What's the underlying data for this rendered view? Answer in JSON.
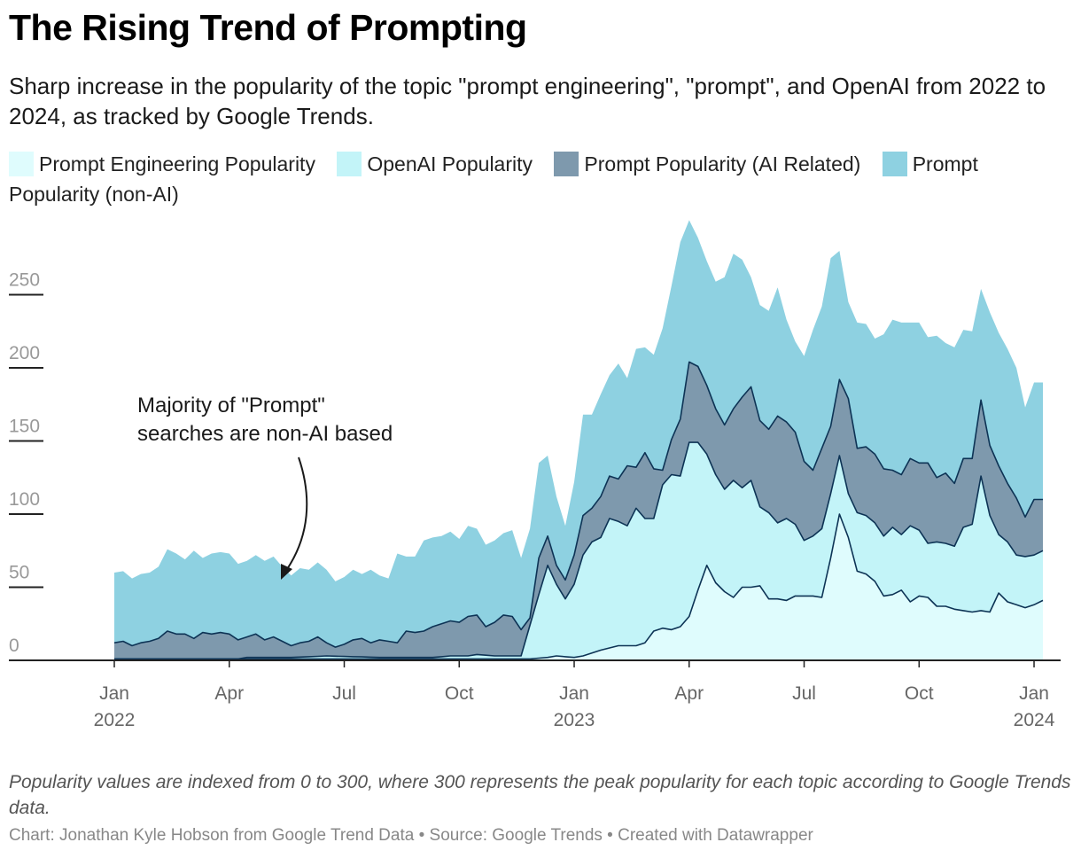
{
  "title": "The Rising Trend of Prompting",
  "subtitle": "Sharp increase in the popularity of the topic \"prompt engineering\", \"prompt\", and OpenAI from 2022 to 2024, as tracked by Google Trends.",
  "legend": [
    {
      "label": "Prompt Engineering Popularity",
      "color": "#dffcfd"
    },
    {
      "label": "OpenAI Popularity",
      "color": "#c3f4f8"
    },
    {
      "label": "Prompt Popularity (AI Related)",
      "color": "#7e99ad"
    },
    {
      "label": "Prompt Popularity (non-AI)",
      "color": "#8ed1e1"
    }
  ],
  "annotation": {
    "line1": "Majority of \"Prompt\"",
    "line2": "searches are non-AI based"
  },
  "footnote": "Popularity values are indexed from 0 to 300, where 300 represents the peak popularity for each topic according to Google Trends data.",
  "credit": "Chart: Jonathan Kyle Hobson from Google Trend Data • Source: Google Trends • Created with Datawrapper",
  "chart_data": {
    "type": "area",
    "stacked": true,
    "x_unit": "week",
    "x_start": "2022-01-02",
    "x_count": 106,
    "ylim": [
      0,
      250
    ],
    "y_ticks": [
      0,
      50,
      100,
      150,
      200,
      250
    ],
    "x_ticks": [
      {
        "index": 0,
        "month": "Jan",
        "year": "2022"
      },
      {
        "index": 13,
        "month": "Apr",
        "year": ""
      },
      {
        "index": 26,
        "month": "Jul",
        "year": ""
      },
      {
        "index": 39,
        "month": "Oct",
        "year": ""
      },
      {
        "index": 52,
        "month": "Jan",
        "year": "2023"
      },
      {
        "index": 65,
        "month": "Apr",
        "year": ""
      },
      {
        "index": 78,
        "month": "Jul",
        "year": ""
      },
      {
        "index": 91,
        "month": "Oct",
        "year": ""
      },
      {
        "index": 104,
        "month": "Jan",
        "year": "2024"
      }
    ],
    "cumulative_anchors": {
      "prompt_engineering": [
        [
          0,
          1
        ],
        [
          47,
          1
        ],
        [
          49,
          2
        ],
        [
          50,
          3
        ],
        [
          52,
          2
        ],
        [
          53,
          3
        ],
        [
          54,
          5
        ],
        [
          55,
          7
        ],
        [
          57,
          10
        ],
        [
          59,
          10
        ],
        [
          60,
          12
        ],
        [
          61,
          20
        ],
        [
          62,
          22
        ],
        [
          63,
          21
        ],
        [
          64,
          23
        ],
        [
          65,
          30
        ],
        [
          66,
          48
        ],
        [
          67,
          65
        ],
        [
          68,
          53
        ],
        [
          69,
          47
        ],
        [
          70,
          43
        ],
        [
          71,
          50
        ],
        [
          72,
          50
        ],
        [
          73,
          51
        ],
        [
          74,
          42
        ],
        [
          75,
          42
        ],
        [
          76,
          41
        ],
        [
          77,
          44
        ],
        [
          78,
          44
        ],
        [
          79,
          44
        ],
        [
          80,
          43
        ],
        [
          81,
          70
        ],
        [
          82,
          100
        ],
        [
          83,
          84
        ],
        [
          84,
          61
        ],
        [
          85,
          59
        ],
        [
          86,
          54
        ],
        [
          87,
          44
        ],
        [
          88,
          45
        ],
        [
          89,
          48
        ],
        [
          90,
          40
        ],
        [
          91,
          44
        ],
        [
          92,
          43
        ],
        [
          93,
          37
        ],
        [
          94,
          37
        ],
        [
          95,
          35
        ],
        [
          96,
          34
        ],
        [
          97,
          33
        ],
        [
          98,
          34
        ],
        [
          99,
          33
        ],
        [
          100,
          46
        ],
        [
          101,
          40
        ],
        [
          102,
          38
        ],
        [
          103,
          36
        ],
        [
          104,
          38
        ],
        [
          105,
          41
        ]
      ],
      "openai": [
        [
          0,
          1
        ],
        [
          14,
          1
        ],
        [
          15,
          2
        ],
        [
          20,
          2
        ],
        [
          24,
          3
        ],
        [
          30,
          2
        ],
        [
          36,
          2
        ],
        [
          38,
          3
        ],
        [
          40,
          3
        ],
        [
          41,
          4
        ],
        [
          43,
          3
        ],
        [
          46,
          3
        ],
        [
          48,
          45
        ],
        [
          49,
          65
        ],
        [
          50,
          52
        ],
        [
          51,
          42
        ],
        [
          52,
          52
        ],
        [
          53,
          72
        ],
        [
          54,
          81
        ],
        [
          55,
          84
        ],
        [
          56,
          97
        ],
        [
          57,
          95
        ],
        [
          58,
          92
        ],
        [
          59,
          104
        ],
        [
          60,
          97
        ],
        [
          61,
          97
        ],
        [
          62,
          120
        ],
        [
          63,
          127
        ],
        [
          64,
          126
        ],
        [
          65,
          149
        ],
        [
          66,
          149
        ],
        [
          67,
          141
        ],
        [
          68,
          127
        ],
        [
          69,
          117
        ],
        [
          70,
          123
        ],
        [
          71,
          118
        ],
        [
          72,
          123
        ],
        [
          73,
          105
        ],
        [
          74,
          101
        ],
        [
          75,
          94
        ],
        [
          76,
          97
        ],
        [
          77,
          93
        ],
        [
          78,
          82
        ],
        [
          79,
          85
        ],
        [
          80,
          90
        ],
        [
          81,
          114
        ],
        [
          82,
          140
        ],
        [
          83,
          114
        ],
        [
          84,
          101
        ],
        [
          85,
          99
        ],
        [
          86,
          94
        ],
        [
          87,
          85
        ],
        [
          88,
          91
        ],
        [
          89,
          86
        ],
        [
          90,
          92
        ],
        [
          91,
          89
        ],
        [
          92,
          80
        ],
        [
          93,
          81
        ],
        [
          94,
          80
        ],
        [
          95,
          78
        ],
        [
          96,
          91
        ],
        [
          97,
          93
        ],
        [
          98,
          126
        ],
        [
          99,
          99
        ],
        [
          100,
          86
        ],
        [
          101,
          81
        ],
        [
          102,
          72
        ],
        [
          103,
          71
        ],
        [
          104,
          72
        ],
        [
          105,
          75
        ]
      ],
      "prompt_ai": [
        [
          0,
          12
        ],
        [
          1,
          13
        ],
        [
          2,
          10
        ],
        [
          3,
          12
        ],
        [
          4,
          13
        ],
        [
          5,
          15
        ],
        [
          6,
          20
        ],
        [
          7,
          18
        ],
        [
          8,
          18
        ],
        [
          9,
          15
        ],
        [
          10,
          19
        ],
        [
          11,
          18
        ],
        [
          12,
          19
        ],
        [
          13,
          18
        ],
        [
          14,
          14
        ],
        [
          15,
          16
        ],
        [
          16,
          18
        ],
        [
          17,
          14
        ],
        [
          18,
          16
        ],
        [
          19,
          13
        ],
        [
          20,
          10
        ],
        [
          21,
          12
        ],
        [
          22,
          13
        ],
        [
          23,
          16
        ],
        [
          24,
          12
        ],
        [
          25,
          9
        ],
        [
          26,
          11
        ],
        [
          27,
          14
        ],
        [
          28,
          15
        ],
        [
          29,
          12
        ],
        [
          30,
          14
        ],
        [
          31,
          13
        ],
        [
          32,
          12
        ],
        [
          33,
          20
        ],
        [
          34,
          19
        ],
        [
          35,
          20
        ],
        [
          36,
          23
        ],
        [
          37,
          25
        ],
        [
          38,
          27
        ],
        [
          39,
          26
        ],
        [
          40,
          30
        ],
        [
          41,
          31
        ],
        [
          42,
          23
        ],
        [
          43,
          26
        ],
        [
          44,
          31
        ],
        [
          45,
          30
        ],
        [
          46,
          21
        ],
        [
          47,
          29
        ],
        [
          48,
          70
        ],
        [
          49,
          85
        ],
        [
          50,
          65
        ],
        [
          51,
          55
        ],
        [
          52,
          72
        ],
        [
          53,
          99
        ],
        [
          54,
          104
        ],
        [
          55,
          112
        ],
        [
          56,
          126
        ],
        [
          57,
          124
        ],
        [
          58,
          133
        ],
        [
          59,
          132
        ],
        [
          60,
          142
        ],
        [
          61,
          131
        ],
        [
          62,
          130
        ],
        [
          63,
          151
        ],
        [
          64,
          165
        ],
        [
          65,
          204
        ],
        [
          66,
          201
        ],
        [
          67,
          188
        ],
        [
          68,
          172
        ],
        [
          69,
          161
        ],
        [
          70,
          172
        ],
        [
          71,
          180
        ],
        [
          72,
          187
        ],
        [
          73,
          164
        ],
        [
          74,
          158
        ],
        [
          75,
          167
        ],
        [
          76,
          163
        ],
        [
          77,
          156
        ],
        [
          78,
          136
        ],
        [
          79,
          130
        ],
        [
          80,
          145
        ],
        [
          81,
          160
        ],
        [
          82,
          192
        ],
        [
          83,
          179
        ],
        [
          84,
          145
        ],
        [
          85,
          146
        ],
        [
          86,
          141
        ],
        [
          87,
          131
        ],
        [
          88,
          130
        ],
        [
          89,
          127
        ],
        [
          90,
          138
        ],
        [
          91,
          135
        ],
        [
          92,
          135
        ],
        [
          93,
          125
        ],
        [
          94,
          128
        ],
        [
          95,
          121
        ],
        [
          96,
          138
        ],
        [
          97,
          138
        ],
        [
          98,
          178
        ],
        [
          99,
          147
        ],
        [
          100,
          133
        ],
        [
          101,
          121
        ],
        [
          102,
          111
        ],
        [
          103,
          98
        ],
        [
          104,
          110
        ],
        [
          105,
          110
        ]
      ],
      "prompt_total": [
        [
          0,
          60
        ],
        [
          1,
          61
        ],
        [
          2,
          56
        ],
        [
          3,
          59
        ],
        [
          4,
          60
        ],
        [
          5,
          64
        ],
        [
          6,
          76
        ],
        [
          7,
          73
        ],
        [
          8,
          69
        ],
        [
          9,
          75
        ],
        [
          10,
          70
        ],
        [
          11,
          73
        ],
        [
          12,
          74
        ],
        [
          13,
          73
        ],
        [
          14,
          66
        ],
        [
          15,
          68
        ],
        [
          16,
          72
        ],
        [
          17,
          68
        ],
        [
          18,
          71
        ],
        [
          19,
          64
        ],
        [
          20,
          58
        ],
        [
          21,
          63
        ],
        [
          22,
          62
        ],
        [
          23,
          67
        ],
        [
          24,
          62
        ],
        [
          25,
          54
        ],
        [
          26,
          57
        ],
        [
          27,
          62
        ],
        [
          28,
          59
        ],
        [
          29,
          62
        ],
        [
          30,
          58
        ],
        [
          31,
          56
        ],
        [
          32,
          73
        ],
        [
          33,
          71
        ],
        [
          34,
          71
        ],
        [
          35,
          82
        ],
        [
          36,
          84
        ],
        [
          37,
          85
        ],
        [
          38,
          88
        ],
        [
          39,
          83
        ],
        [
          40,
          92
        ],
        [
          41,
          90
        ],
        [
          42,
          79
        ],
        [
          43,
          82
        ],
        [
          44,
          87
        ],
        [
          45,
          89
        ],
        [
          46,
          70
        ],
        [
          47,
          90
        ],
        [
          48,
          135
        ],
        [
          49,
          140
        ],
        [
          50,
          112
        ],
        [
          51,
          92
        ],
        [
          52,
          122
        ],
        [
          53,
          168
        ],
        [
          54,
          168
        ],
        [
          55,
          182
        ],
        [
          56,
          195
        ],
        [
          57,
          203
        ],
        [
          58,
          193
        ],
        [
          59,
          213
        ],
        [
          60,
          214
        ],
        [
          61,
          209
        ],
        [
          62,
          227
        ],
        [
          63,
          256
        ],
        [
          64,
          286
        ],
        [
          65,
          301
        ],
        [
          66,
          289
        ],
        [
          67,
          273
        ],
        [
          68,
          259
        ],
        [
          69,
          262
        ],
        [
          70,
          278
        ],
        [
          71,
          274
        ],
        [
          72,
          262
        ],
        [
          73,
          243
        ],
        [
          74,
          239
        ],
        [
          75,
          255
        ],
        [
          76,
          233
        ],
        [
          77,
          218
        ],
        [
          78,
          208
        ],
        [
          79,
          226
        ],
        [
          80,
          242
        ],
        [
          81,
          275
        ],
        [
          82,
          280
        ],
        [
          83,
          245
        ],
        [
          84,
          231
        ],
        [
          85,
          230
        ],
        [
          86,
          220
        ],
        [
          87,
          223
        ],
        [
          88,
          233
        ],
        [
          89,
          231
        ],
        [
          90,
          231
        ],
        [
          91,
          231
        ],
        [
          92,
          221
        ],
        [
          93,
          222
        ],
        [
          94,
          217
        ],
        [
          95,
          214
        ],
        [
          96,
          226
        ],
        [
          97,
          225
        ],
        [
          98,
          254
        ],
        [
          99,
          238
        ],
        [
          100,
          224
        ],
        [
          101,
          213
        ],
        [
          102,
          200
        ],
        [
          103,
          173
        ],
        [
          104,
          190
        ],
        [
          105,
          190
        ]
      ]
    }
  }
}
